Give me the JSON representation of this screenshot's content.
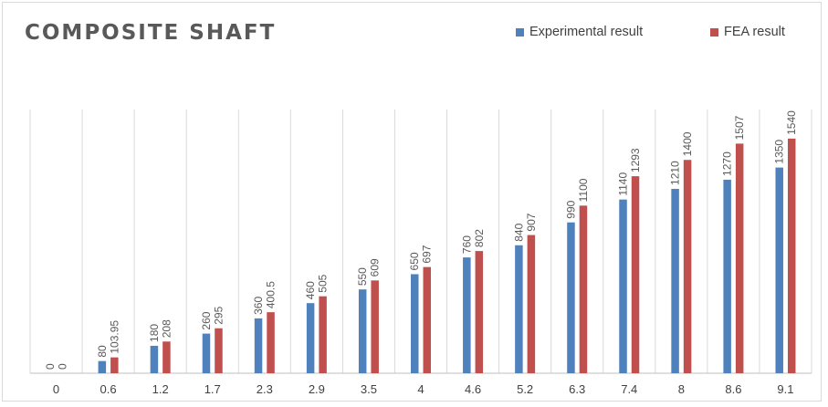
{
  "chart_data": {
    "type": "bar",
    "title": "COMPOSITE SHAFT",
    "xlabel": "",
    "ylabel": "",
    "ylim": [
      0,
      1800
    ],
    "grid": "vertical category separators",
    "legend_position": "top-right",
    "categories": [
      "0",
      "0.6",
      "1.2",
      "1.7",
      "2.3",
      "2.9",
      "3.5",
      "4",
      "4.6",
      "5.2",
      "6.3",
      "7.4",
      "8",
      "8.6",
      "9.1"
    ],
    "series": [
      {
        "name": "Experimental result",
        "color": "#4f81bd",
        "values": [
          0,
          80,
          180,
          260,
          360,
          460,
          550,
          650,
          760,
          840,
          990,
          1140,
          1210,
          1270,
          1350
        ],
        "labels": [
          "0",
          "80",
          "180",
          "260",
          "360",
          "460",
          "550",
          "650",
          "760",
          "840",
          "990",
          "1140",
          "1210",
          "1270",
          "1350"
        ]
      },
      {
        "name": "FEA result",
        "color": "#c0504d",
        "values": [
          0,
          103.95,
          208,
          295,
          400.5,
          505,
          609,
          697,
          802,
          907,
          1100,
          1293,
          1400,
          1507,
          1540
        ],
        "labels": [
          "0",
          "103.95",
          "208",
          "295",
          "400.5",
          "505",
          "609",
          "697",
          "802",
          "907",
          "1100",
          "1293",
          "1400",
          "1507",
          "1540"
        ]
      }
    ]
  }
}
